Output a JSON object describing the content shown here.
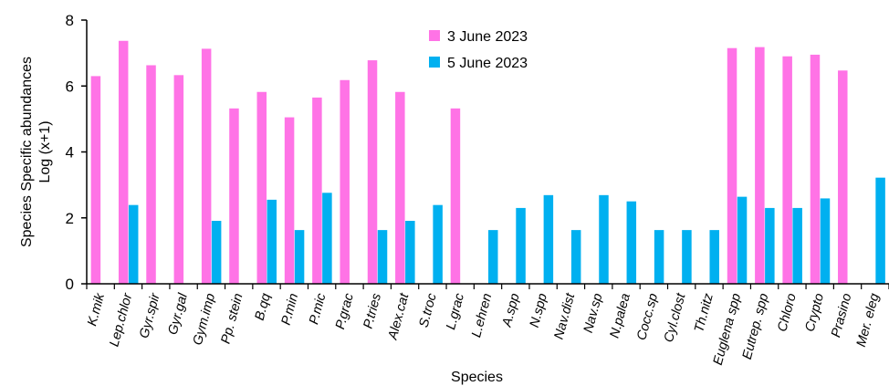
{
  "chart_data": {
    "type": "bar",
    "xlabel": "Species",
    "ylabel": [
      "Species Specific abundances",
      "Log (x+1)"
    ],
    "ylim": [
      0,
      8
    ],
    "yticks": [
      0,
      2,
      4,
      6,
      8
    ],
    "grid": false,
    "legend_position": "top-center",
    "categories": [
      "K.mik",
      "Lep.chlor",
      "Gyr.spir",
      "Gyr.gal",
      "Gym.imp",
      "Pp. stein",
      "B.qq",
      "P.min",
      "P.mic",
      "P.grac",
      "P.tries",
      "Alex.cat",
      "S.troc",
      "L.grac",
      "L.ehren",
      "A.spp",
      "N.spp",
      "Nav.dist",
      "Nav.sp",
      "N.palea",
      "Cocc.sp",
      "Cyl.clost",
      "Th.nitz",
      "Euglena spp",
      "Eutrep. spp",
      "Chloro",
      "Crypto",
      "Prasino",
      "Mer. eleg"
    ],
    "series": [
      {
        "name": "3 June 2023",
        "color": "#ff73e6",
        "values": [
          6.3,
          7.37,
          6.63,
          6.33,
          7.13,
          5.32,
          5.82,
          5.05,
          5.65,
          6.18,
          6.78,
          5.82,
          0,
          5.32,
          0,
          0,
          0,
          0,
          0,
          0,
          0,
          0,
          0,
          7.15,
          7.18,
          6.9,
          6.95,
          6.47,
          0
        ]
      },
      {
        "name": "5 June 2023",
        "color": "#00b0f0",
        "values": [
          0,
          2.39,
          0,
          0,
          1.91,
          0,
          2.55,
          1.63,
          2.76,
          0,
          1.63,
          1.91,
          2.39,
          0,
          1.63,
          2.3,
          2.69,
          1.63,
          2.69,
          2.5,
          1.63,
          1.63,
          1.63,
          2.64,
          2.3,
          2.3,
          2.59,
          0,
          3.22
        ]
      }
    ]
  }
}
